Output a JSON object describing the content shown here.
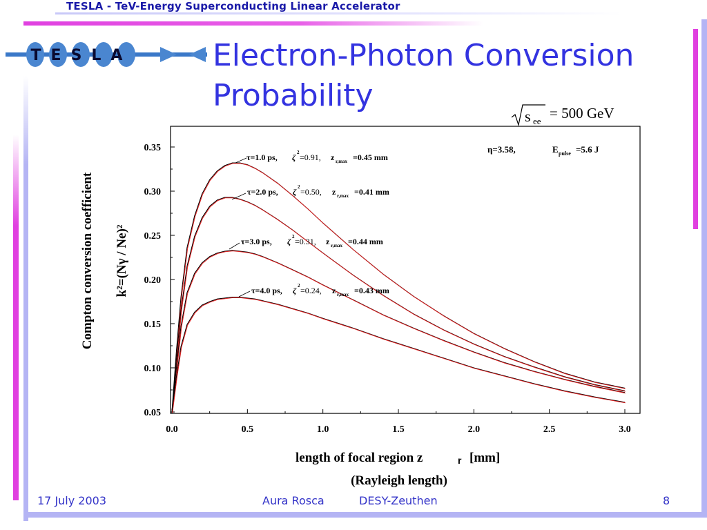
{
  "header": {
    "title": "TESLA - TeV-Energy Superconducting Linear Accelerator"
  },
  "logo": {
    "text": "TESLA"
  },
  "slide": {
    "title_line1": "Electron-Photon Conversion",
    "title_line2": "Probability"
  },
  "formula": {
    "sym": "s",
    "sub": "ee",
    "rhs": "= 500 GeV"
  },
  "footer": {
    "date": "17 July 2003",
    "author": "Aura Rosca",
    "institute": "DESY-Zeuthen",
    "page": "8"
  },
  "colors": {
    "header": "#1a1aa8",
    "title": "#3333e0",
    "magenta": "#e040e0",
    "lavender": "#b0b0f0",
    "series_black": "#000000",
    "series_red": "#e02020"
  },
  "chart_data": {
    "type": "line",
    "ylabel_line1": "Compton conversion coefficient",
    "ylabel_line2": "k²=(Nγ / Ne)²",
    "xlabel_line1": "length of focal region z",
    "xlabel_sub": "r",
    "xlabel_unit": "[mm]",
    "xlabel_line2": "(Rayleigh length)",
    "xlim": [
      0.0,
      3.0
    ],
    "ylim": [
      0.05,
      0.38
    ],
    "x_ticks": [
      "0.0",
      "0.5",
      "1.0",
      "1.5",
      "2.0",
      "2.5",
      "3.0"
    ],
    "y_ticks": [
      "0.05",
      "0.10",
      "0.15",
      "0.20",
      "0.25",
      "0.30",
      "0.35"
    ],
    "annotation": {
      "eta": "η=3.58,",
      "epulse": "E",
      "epulse_sub": "pulse",
      "epulse_val": "=5.6 J"
    },
    "series": [
      {
        "label_tau": "τ=1.0 ps,",
        "label_zeta": "ζ",
        "zeta_val": "=0.91,",
        "label_z": "z",
        "z_sub": "r,max",
        "z_val": "=0.45 mm",
        "x": [
          0.0,
          0.03,
          0.06,
          0.1,
          0.15,
          0.2,
          0.25,
          0.3,
          0.35,
          0.4,
          0.45,
          0.5,
          0.55,
          0.6,
          0.7,
          0.8,
          0.9,
          1.0,
          1.2,
          1.4,
          1.6,
          1.8,
          2.0,
          2.2,
          2.4,
          2.6,
          2.8,
          3.0
        ],
        "y": [
          0.05,
          0.12,
          0.18,
          0.236,
          0.272,
          0.297,
          0.313,
          0.323,
          0.329,
          0.332,
          0.332,
          0.33,
          0.326,
          0.321,
          0.309,
          0.295,
          0.28,
          0.264,
          0.234,
          0.206,
          0.181,
          0.159,
          0.139,
          0.122,
          0.107,
          0.094,
          0.084,
          0.077
        ]
      },
      {
        "label_tau": "τ=2.0 ps,",
        "label_zeta": "ζ",
        "zeta_val": "=0.50,",
        "label_z": "z",
        "z_sub": "r,max",
        "z_val": "=0.41 mm",
        "x": [
          0.0,
          0.03,
          0.06,
          0.1,
          0.15,
          0.2,
          0.25,
          0.3,
          0.35,
          0.4,
          0.45,
          0.5,
          0.55,
          0.6,
          0.7,
          0.8,
          0.9,
          1.0,
          1.2,
          1.4,
          1.6,
          1.8,
          2.0,
          2.2,
          2.4,
          2.6,
          2.8,
          3.0
        ],
        "y": [
          0.05,
          0.11,
          0.165,
          0.215,
          0.249,
          0.27,
          0.283,
          0.29,
          0.293,
          0.293,
          0.291,
          0.288,
          0.284,
          0.279,
          0.268,
          0.256,
          0.243,
          0.23,
          0.205,
          0.182,
          0.161,
          0.143,
          0.127,
          0.113,
          0.101,
          0.09,
          0.081,
          0.074
        ]
      },
      {
        "label_tau": "τ=3.0 ps,",
        "label_zeta": "ζ",
        "zeta_val": "=0.31,",
        "label_z": "z",
        "z_sub": "r,max",
        "z_val": "=0.44 mm",
        "x": [
          0.0,
          0.03,
          0.06,
          0.1,
          0.15,
          0.2,
          0.25,
          0.3,
          0.35,
          0.4,
          0.45,
          0.5,
          0.55,
          0.6,
          0.7,
          0.8,
          0.9,
          1.0,
          1.2,
          1.4,
          1.6,
          1.8,
          2.0,
          2.2,
          2.4,
          2.6,
          2.8,
          3.0
        ],
        "y": [
          0.05,
          0.1,
          0.147,
          0.185,
          0.207,
          0.219,
          0.226,
          0.23,
          0.232,
          0.233,
          0.232,
          0.231,
          0.229,
          0.226,
          0.219,
          0.211,
          0.203,
          0.194,
          0.177,
          0.16,
          0.145,
          0.131,
          0.118,
          0.106,
          0.096,
          0.087,
          0.079,
          0.072
        ]
      },
      {
        "label_tau": "τ=4.0 ps,",
        "label_zeta": "ζ",
        "zeta_val": "=0.24,",
        "label_z": "z",
        "z_sub": "r,max",
        "z_val": "=0.43 mm",
        "x": [
          0.0,
          0.03,
          0.06,
          0.1,
          0.15,
          0.2,
          0.25,
          0.3,
          0.35,
          0.4,
          0.45,
          0.5,
          0.55,
          0.6,
          0.7,
          0.8,
          0.9,
          1.0,
          1.2,
          1.4,
          1.6,
          1.8,
          2.0,
          2.2,
          2.4,
          2.6,
          2.8,
          3.0
        ],
        "y": [
          0.05,
          0.09,
          0.124,
          0.149,
          0.163,
          0.171,
          0.175,
          0.178,
          0.179,
          0.18,
          0.18,
          0.179,
          0.178,
          0.176,
          0.172,
          0.167,
          0.162,
          0.156,
          0.145,
          0.133,
          0.122,
          0.111,
          0.1,
          0.091,
          0.082,
          0.074,
          0.067,
          0.061
        ]
      }
    ]
  }
}
